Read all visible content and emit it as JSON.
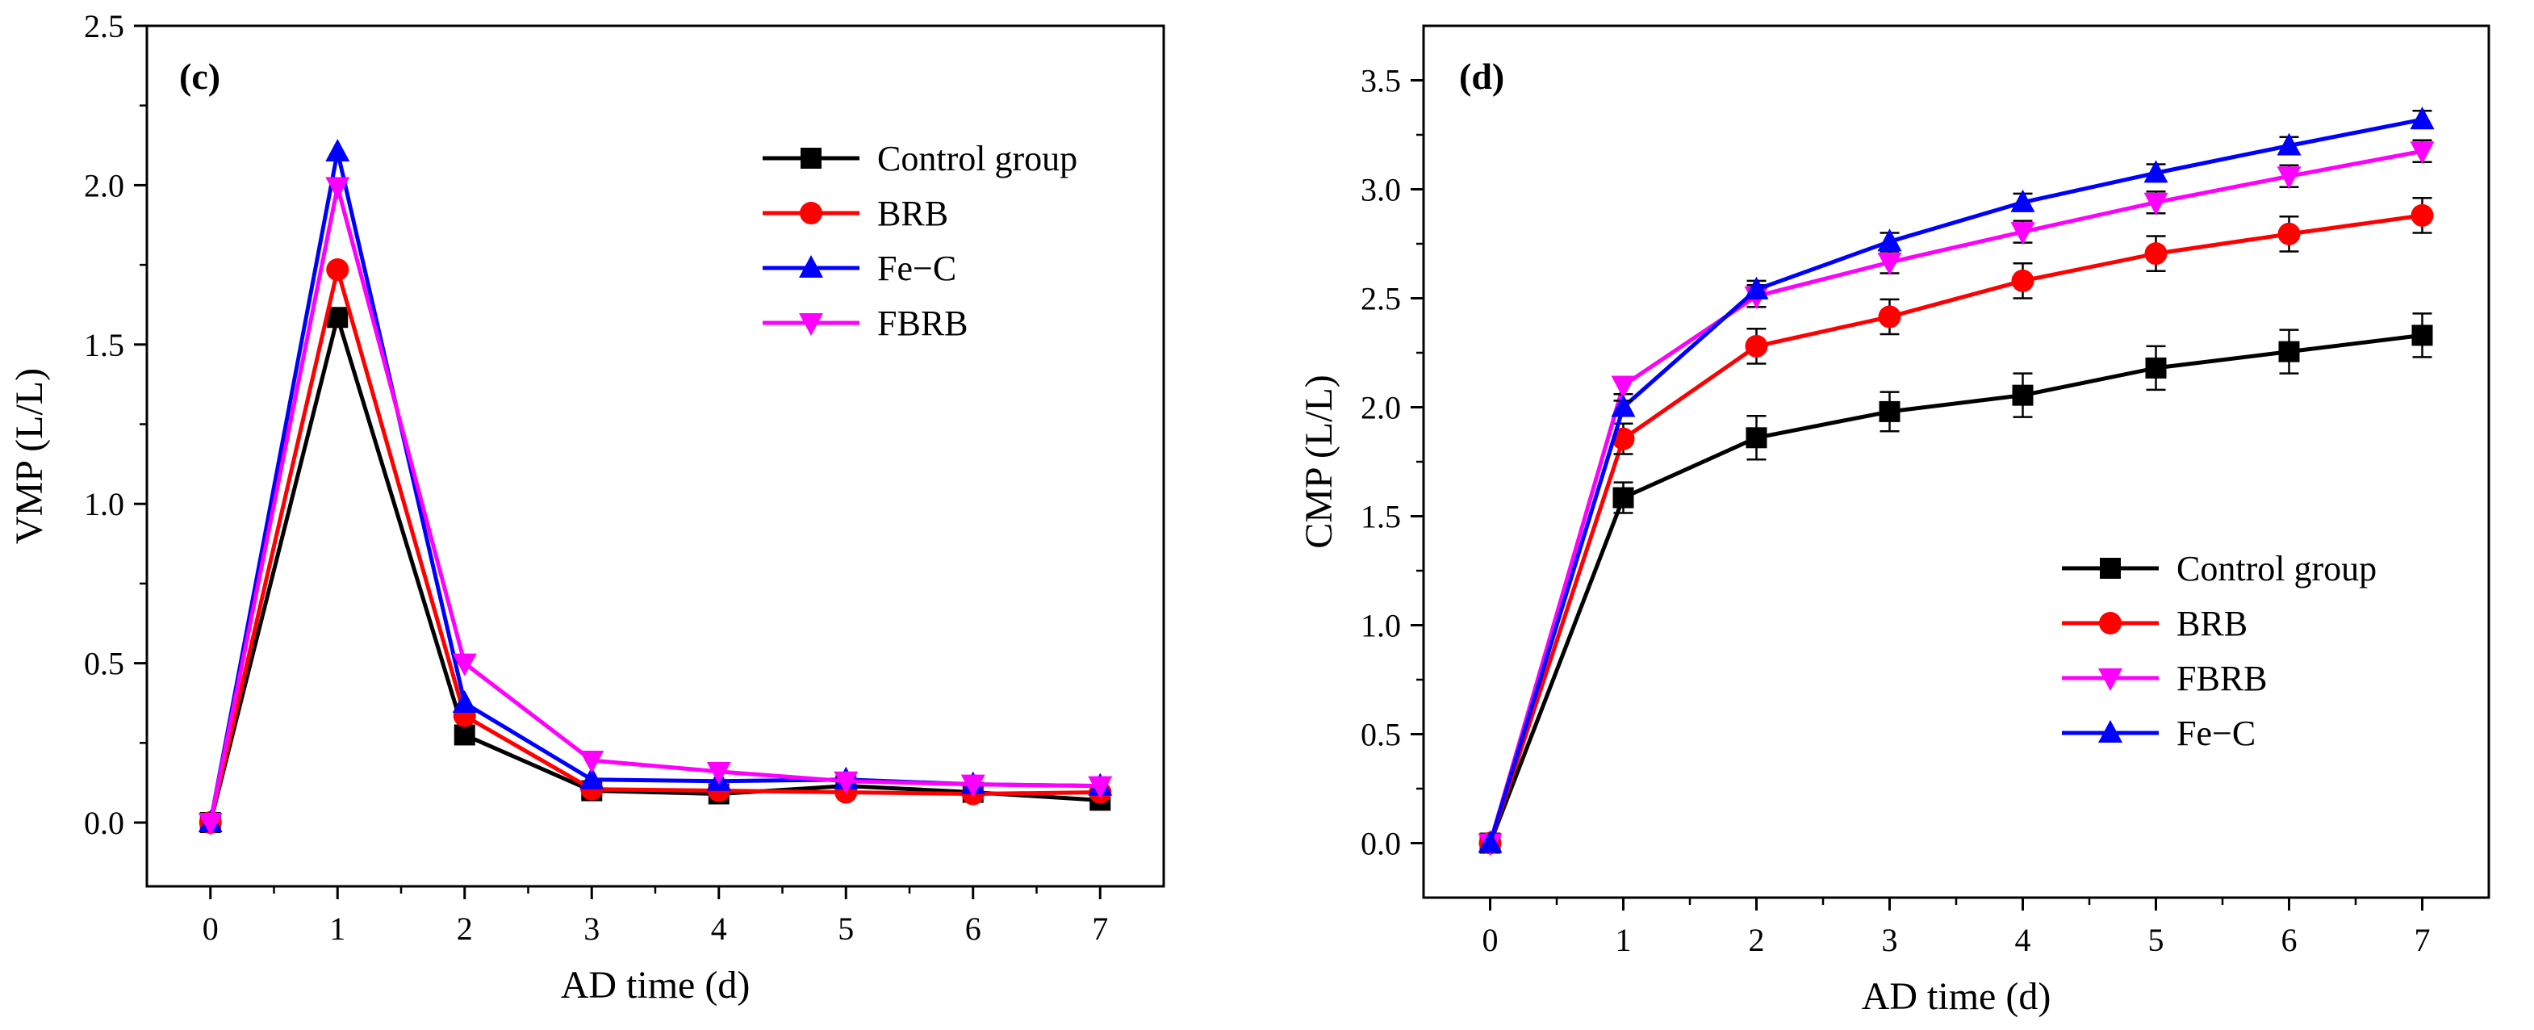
{
  "chart_data": [
    {
      "type": "line",
      "panel_label": "(c)",
      "xlabel": "AD time (d)",
      "ylabel": "VMP (L/L)",
      "x": [
        0,
        1,
        2,
        3,
        4,
        5,
        6,
        7
      ],
      "xlim": [
        -0.5,
        7.5
      ],
      "ylim": [
        -0.2,
        2.5
      ],
      "xticks": [
        "0",
        "1",
        "2",
        "3",
        "4",
        "5",
        "6",
        "7"
      ],
      "yticks": [
        "0.0",
        "0.5",
        "1.0",
        "1.5",
        "2.0",
        "2.5"
      ],
      "legend_position": "top-right",
      "series": [
        {
          "name": "Control group",
          "color": "#000000",
          "marker": "square",
          "values": [
            0.0,
            1.585,
            0.275,
            0.1,
            0.09,
            0.115,
            0.095,
            0.07
          ]
        },
        {
          "name": "BRB",
          "color": "#ff0000",
          "marker": "circle",
          "values": [
            0.0,
            1.735,
            0.335,
            0.105,
            0.1,
            0.095,
            0.09,
            0.095
          ]
        },
        {
          "name": "Fe−C",
          "color": "#0000ff",
          "marker": "triangle-up",
          "values": [
            0.0,
            2.105,
            0.375,
            0.135,
            0.13,
            0.135,
            0.12,
            0.115
          ]
        },
        {
          "name": "FBRB",
          "color": "#ff00ff",
          "marker": "triangle-down",
          "values": [
            0.0,
            1.995,
            0.5,
            0.195,
            0.16,
            0.13,
            0.12,
            0.115
          ]
        }
      ]
    },
    {
      "type": "line",
      "panel_label": "(d)",
      "xlabel": "AD time (d)",
      "ylabel": "CMP (L/L)",
      "x": [
        0,
        1,
        2,
        3,
        4,
        5,
        6,
        7
      ],
      "xlim": [
        -0.5,
        7.5
      ],
      "ylim": [
        -0.25,
        3.75
      ],
      "xticks": [
        "0",
        "1",
        "2",
        "3",
        "4",
        "5",
        "6",
        "7"
      ],
      "yticks": [
        "0.0",
        "0.5",
        "1.0",
        "1.5",
        "2.0",
        "2.5",
        "3.0",
        "3.5"
      ],
      "legend_position": "bottom-right",
      "error_bars": true,
      "series": [
        {
          "name": "Control group",
          "color": "#000000",
          "marker": "square",
          "values": [
            0.0,
            1.585,
            1.86,
            1.98,
            2.055,
            2.18,
            2.255,
            2.33
          ],
          "errors": [
            0,
            0.07,
            0.1,
            0.09,
            0.1,
            0.1,
            0.1,
            0.1
          ]
        },
        {
          "name": "BRB",
          "color": "#ff0000",
          "marker": "circle",
          "values": [
            0.0,
            1.855,
            2.28,
            2.415,
            2.58,
            2.705,
            2.795,
            2.88
          ],
          "errors": [
            0,
            0.07,
            0.08,
            0.08,
            0.08,
            0.08,
            0.08,
            0.08
          ]
        },
        {
          "name": "FBRB",
          "color": "#ff00ff",
          "marker": "triangle-down",
          "values": [
            0.0,
            2.1,
            2.51,
            2.665,
            2.805,
            2.94,
            3.06,
            3.175
          ],
          "errors": [
            0,
            0.04,
            0.05,
            0.05,
            0.05,
            0.05,
            0.05,
            0.05
          ]
        },
        {
          "name": "Fe−C",
          "color": "#0000ff",
          "marker": "triangle-up",
          "values": [
            0.0,
            2.0,
            2.54,
            2.76,
            2.94,
            3.075,
            3.2,
            3.32
          ],
          "errors": [
            0,
            0.03,
            0.04,
            0.04,
            0.04,
            0.04,
            0.04,
            0.04
          ]
        }
      ]
    }
  ]
}
